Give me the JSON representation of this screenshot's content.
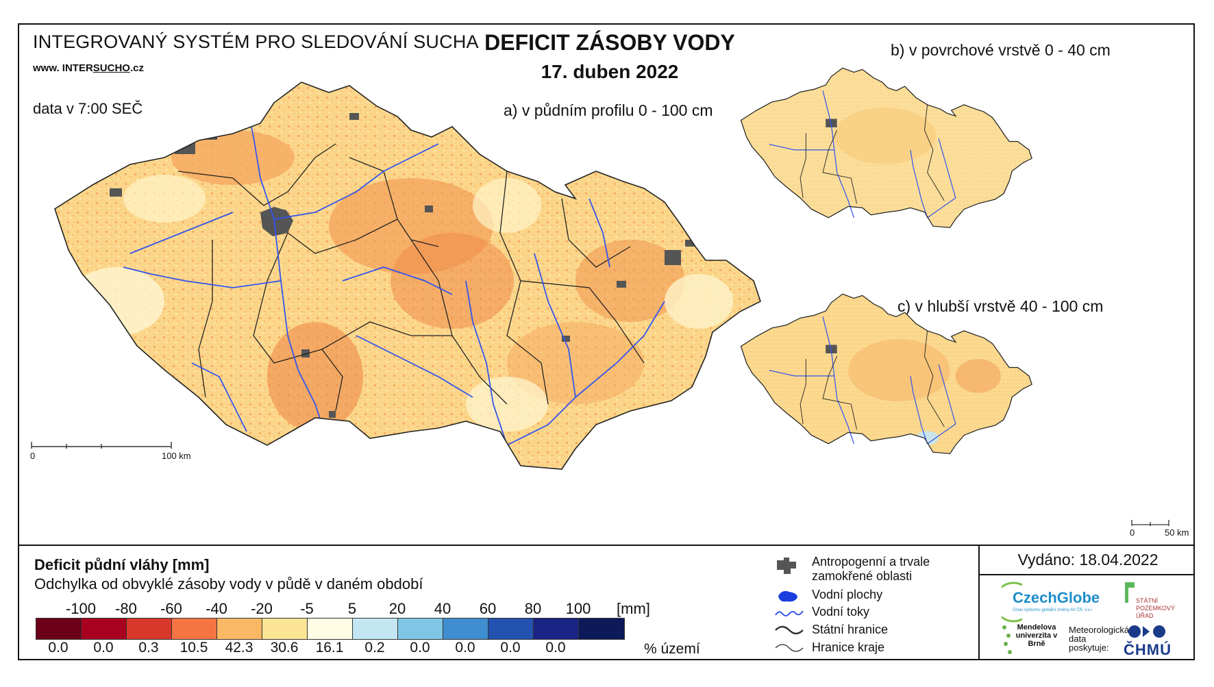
{
  "header": {
    "system_title": "INTEGROVANÝ SYSTÉM PRO SLEDOVÁNÍ SUCHA",
    "url_prefix": "www. INTER",
    "url_brand": "SUCHO",
    "url_suffix": ".cz",
    "data_time": "data v 7:00 SEČ",
    "main_title": "DEFICIT ZÁSOBY VODY",
    "date": "17. duben 2022"
  },
  "maps": {
    "a": {
      "label": "a) v půdním profilu 0 - 100 cm",
      "scale_start": "0",
      "scale_end": "100 km"
    },
    "b": {
      "label": "b) v povrchové vrstvě 0 - 40 cm"
    },
    "c": {
      "label": "c) v hlubší vrstvě 40 - 100 cm",
      "scale_start": "0",
      "scale_end": "50 km"
    }
  },
  "legend": {
    "title": "Deficit půdní vláhy  [mm]",
    "subtitle": "Odchylka od obvyklé zásoby vody v půdě v daném období",
    "ticks": [
      "-100",
      "-80",
      "-60",
      "-40",
      "-20",
      "-5",
      "5",
      "20",
      "40",
      "60",
      "80",
      "100"
    ],
    "unit": "[mm]",
    "classes": [
      {
        "color": "#6b0018",
        "pct": "0.0"
      },
      {
        "color": "#a8001f",
        "pct": "0.0"
      },
      {
        "color": "#d8372b",
        "pct": "0.3"
      },
      {
        "color": "#f47444",
        "pct": "10.5"
      },
      {
        "color": "#fbb864",
        "pct": "42.3"
      },
      {
        "color": "#fbe594",
        "pct": "30.6"
      },
      {
        "color": "#fffde4",
        "pct": "16.1"
      },
      {
        "color": "#c4e6f3",
        "pct": "0.2"
      },
      {
        "color": "#7fc6e6",
        "pct": "0.0"
      },
      {
        "color": "#3f8ed0",
        "pct": "0.0"
      },
      {
        "color": "#2352b0",
        "pct": "0.0"
      },
      {
        "color": "#1a2484",
        "pct": "0.0"
      },
      {
        "color": "#0d1a5a",
        "pct": ""
      }
    ],
    "pct_unit": "% území"
  },
  "key": {
    "urban": "Antropogenní a trvale zamokřené oblasti",
    "water_bodies": "Vodní plochy",
    "rivers": "Vodní toky",
    "state_border": "Státní hranice",
    "region_border": "Hranice kraje"
  },
  "footer": {
    "issued": "Vydáno: 18.04.2022",
    "czechglobe": "CzechGlobe",
    "czechglobe_sub": "Ústav výzkumu globální změny AV ČR, v.v.i.",
    "spu": "STÁTNÍ POZEMKOVÝ ÚŘAD",
    "mendel": "Mendelova univerzita v Brně",
    "met_data": "Meteorologická data poskytuje:",
    "chmu": "ČHMÚ"
  },
  "colors": {
    "map_base": "#fbd98c",
    "urban": "#555555",
    "river": "#3355ee",
    "border": "#222222"
  }
}
